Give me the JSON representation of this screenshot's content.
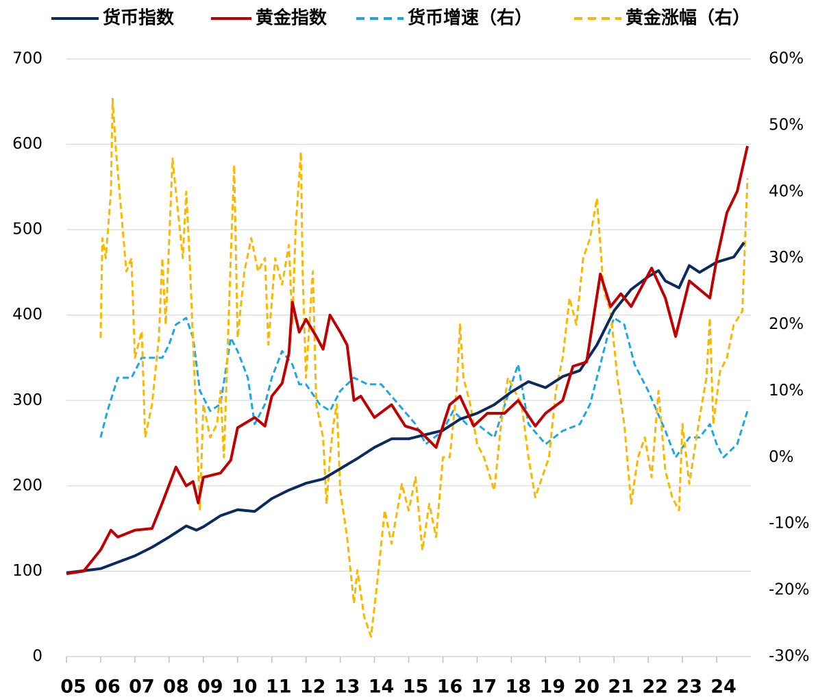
{
  "chart_data": {
    "type": "line",
    "xlim": [
      2005,
      2025
    ],
    "xticks": [
      {
        "value": 2005,
        "label": "05"
      },
      {
        "value": 2006,
        "label": "06"
      },
      {
        "value": 2007,
        "label": "07"
      },
      {
        "value": 2008,
        "label": "08"
      },
      {
        "value": 2009,
        "label": "09"
      },
      {
        "value": 2010,
        "label": "10"
      },
      {
        "value": 2011,
        "label": "11"
      },
      {
        "value": 2012,
        "label": "12"
      },
      {
        "value": 2013,
        "label": "13"
      },
      {
        "value": 2014,
        "label": "14"
      },
      {
        "value": 2015,
        "label": "15"
      },
      {
        "value": 2016,
        "label": "16"
      },
      {
        "value": 2017,
        "label": "17"
      },
      {
        "value": 2018,
        "label": "18"
      },
      {
        "value": 2019,
        "label": "19"
      },
      {
        "value": 2020,
        "label": "20"
      },
      {
        "value": 2021,
        "label": "21"
      },
      {
        "value": 2022,
        "label": "22"
      },
      {
        "value": 2023,
        "label": "23"
      },
      {
        "value": 2024,
        "label": "24"
      }
    ],
    "ylim": [
      0,
      700
    ],
    "yticks": [
      0,
      100,
      200,
      300,
      400,
      500,
      600,
      700
    ],
    "y2lim": [
      -30,
      60
    ],
    "y2ticks": [
      {
        "value": -30,
        "label": "-30%"
      },
      {
        "value": -20,
        "label": "-20%"
      },
      {
        "value": -10,
        "label": "-10%"
      },
      {
        "value": 0,
        "label": "0%"
      },
      {
        "value": 10,
        "label": "10%"
      },
      {
        "value": 20,
        "label": "20%"
      },
      {
        "value": 30,
        "label": "30%"
      },
      {
        "value": 40,
        "label": "40%"
      },
      {
        "value": 50,
        "label": "50%"
      },
      {
        "value": 60,
        "label": "60%"
      }
    ],
    "grid": true,
    "legend": "top",
    "series": [
      {
        "name": "货币指数",
        "color": "#0d2a5e",
        "style": "solid",
        "x": [
          2005,
          2006,
          2007,
          2007.5,
          2008,
          2008.5,
          2008.8,
          2009,
          2009.5,
          2010,
          2010.5,
          2011,
          2011.5,
          2012,
          2012.5,
          2013,
          2013.5,
          2014,
          2014.5,
          2015,
          2015.5,
          2016,
          2016.5,
          2017,
          2017.5,
          2018,
          2018.5,
          2019,
          2019.5,
          2020,
          2020.5,
          2021,
          2021.5,
          2022,
          2022.3,
          2022.5,
          2022.9,
          2023.2,
          2023.5,
          2024,
          2024.5,
          2024.8
        ],
        "values": [
          98,
          103,
          118,
          128,
          140,
          153,
          148,
          152,
          165,
          172,
          170,
          185,
          195,
          203,
          208,
          220,
          232,
          245,
          255,
          255,
          260,
          265,
          278,
          285,
          295,
          310,
          322,
          315,
          328,
          335,
          365,
          405,
          430,
          445,
          452,
          440,
          432,
          458,
          450,
          462,
          468,
          485
        ]
      },
      {
        "name": "黄金指数",
        "color": "#c00000",
        "style": "solid",
        "x": [
          2005,
          2005.5,
          2006,
          2006.3,
          2006.5,
          2007,
          2007.5,
          2007.8,
          2008.2,
          2008.5,
          2008.7,
          2008.85,
          2009,
          2009.5,
          2009.8,
          2010,
          2010.5,
          2010.8,
          2011,
          2011.3,
          2011.5,
          2011.6,
          2011.8,
          2012,
          2012.3,
          2012.5,
          2012.7,
          2013,
          2013.2,
          2013.4,
          2013.6,
          2014,
          2014.5,
          2014.9,
          2015.3,
          2015.8,
          2016.2,
          2016.5,
          2016.9,
          2017.3,
          2017.8,
          2018.2,
          2018.7,
          2019,
          2019.5,
          2019.8,
          2020.2,
          2020.6,
          2020.9,
          2021.2,
          2021.5,
          2022.1,
          2022.5,
          2022.8,
          2023.2,
          2023.5,
          2023.8,
          2024,
          2024.3,
          2024.6,
          2024.9
        ],
        "values": [
          97,
          100,
          125,
          148,
          140,
          148,
          150,
          180,
          222,
          200,
          205,
          180,
          210,
          215,
          230,
          268,
          280,
          270,
          305,
          320,
          355,
          415,
          380,
          395,
          375,
          360,
          400,
          380,
          365,
          300,
          305,
          280,
          295,
          270,
          265,
          245,
          295,
          305,
          270,
          285,
          285,
          300,
          270,
          285,
          300,
          340,
          345,
          448,
          410,
          425,
          410,
          455,
          420,
          375,
          440,
          430,
          420,
          465,
          520,
          545,
          598
        ]
      },
      {
        "name": "货币增速（右）",
        "color": "#1aa7e6",
        "style": "dashed",
        "axis": "y2",
        "x": [
          2006,
          2006.2,
          2006.5,
          2006.9,
          2007.2,
          2007.5,
          2007.8,
          2008,
          2008.2,
          2008.5,
          2008.7,
          2008.9,
          2009.2,
          2009.5,
          2009.8,
          2010,
          2010.3,
          2010.5,
          2010.8,
          2011,
          2011.3,
          2011.6,
          2011.8,
          2012,
          2012.4,
          2012.7,
          2013,
          2013.4,
          2013.8,
          2014.2,
          2014.7,
          2015.2,
          2015.5,
          2016,
          2016.3,
          2016.7,
          2017,
          2017.5,
          2018,
          2018.2,
          2018.5,
          2019,
          2019.5,
          2020,
          2020.3,
          2020.5,
          2020.8,
          2021,
          2021.3,
          2021.6,
          2022,
          2022.5,
          2022.8,
          2023.2,
          2023.5,
          2023.8,
          2024,
          2024.2,
          2024.6,
          2024.9
        ],
        "values": [
          3,
          7,
          12,
          12,
          15,
          15,
          15,
          17,
          20,
          21,
          18,
          10,
          7,
          8,
          18,
          16,
          12,
          5,
          8,
          12,
          16,
          14,
          11,
          11,
          8,
          7,
          10,
          12,
          11,
          11,
          8,
          5,
          2,
          4,
          7,
          5,
          5,
          3,
          11,
          14,
          5,
          2,
          4,
          5,
          8,
          12,
          18,
          21,
          20,
          14,
          10,
          4,
          0,
          3,
          3,
          5,
          2,
          0,
          2,
          7
        ]
      },
      {
        "name": "黄金涨幅（右）",
        "color": "#f9b800",
        "style": "dashed",
        "axis": "y2",
        "x": [
          2006,
          2006.05,
          2006.15,
          2006.3,
          2006.35,
          2006.45,
          2006.6,
          2006.75,
          2006.9,
          2007,
          2007.2,
          2007.3,
          2007.5,
          2007.7,
          2007.8,
          2007.9,
          2008.1,
          2008.3,
          2008.4,
          2008.5,
          2008.6,
          2008.8,
          2008.9,
          2009,
          2009.2,
          2009.4,
          2009.5,
          2009.6,
          2009.8,
          2009.9,
          2010,
          2010.2,
          2010.4,
          2010.6,
          2010.8,
          2010.9,
          2011.1,
          2011.3,
          2011.5,
          2011.6,
          2011.7,
          2011.85,
          2011.9,
          2012,
          2012.1,
          2012.2,
          2012.3,
          2012.5,
          2012.6,
          2012.7,
          2012.8,
          2012.9,
          2013,
          2013.2,
          2013.4,
          2013.5,
          2013.7,
          2013.9,
          2014.1,
          2014.3,
          2014.5,
          2014.8,
          2015,
          2015.2,
          2015.4,
          2015.6,
          2015.8,
          2016,
          2016.2,
          2016.4,
          2016.5,
          2016.6,
          2016.8,
          2017,
          2017.2,
          2017.5,
          2017.7,
          2017.9,
          2018.1,
          2018.3,
          2018.5,
          2018.7,
          2018.9,
          2019.1,
          2019.3,
          2019.5,
          2019.7,
          2019.9,
          2020.1,
          2020.3,
          2020.5,
          2020.7,
          2020.9,
          2021.1,
          2021.3,
          2021.5,
          2021.7,
          2021.9,
          2022.1,
          2022.3,
          2022.5,
          2022.7,
          2022.9,
          2023,
          2023.2,
          2023.5,
          2023.7,
          2023.8,
          2023.9,
          2024.1,
          2024.3,
          2024.5,
          2024.75,
          2024.9
        ],
        "values": [
          18,
          33,
          30,
          40,
          54,
          46,
          37,
          28,
          30,
          15,
          19,
          3,
          8,
          18,
          30,
          20,
          45,
          35,
          30,
          40,
          30,
          5,
          -8,
          8,
          3,
          5,
          10,
          0,
          30,
          44,
          18,
          28,
          33,
          28,
          30,
          17,
          30,
          26,
          32,
          20,
          35,
          46,
          28,
          12,
          20,
          28,
          8,
          3,
          -7,
          0,
          5,
          8,
          -5,
          -12,
          -22,
          -17,
          -24,
          -27,
          -18,
          -8,
          -13,
          -4,
          -8,
          -3,
          -14,
          -7,
          -12,
          0,
          0,
          10,
          20,
          12,
          8,
          2,
          0,
          -5,
          5,
          12,
          10,
          8,
          0,
          -6,
          -3,
          0,
          10,
          15,
          24,
          20,
          30,
          33,
          39,
          25,
          22,
          12,
          5,
          -7,
          0,
          3,
          -3,
          10,
          -2,
          -6,
          -8,
          5,
          -4,
          6,
          12,
          21,
          5,
          13,
          15,
          20,
          22,
          42
        ]
      }
    ]
  }
}
